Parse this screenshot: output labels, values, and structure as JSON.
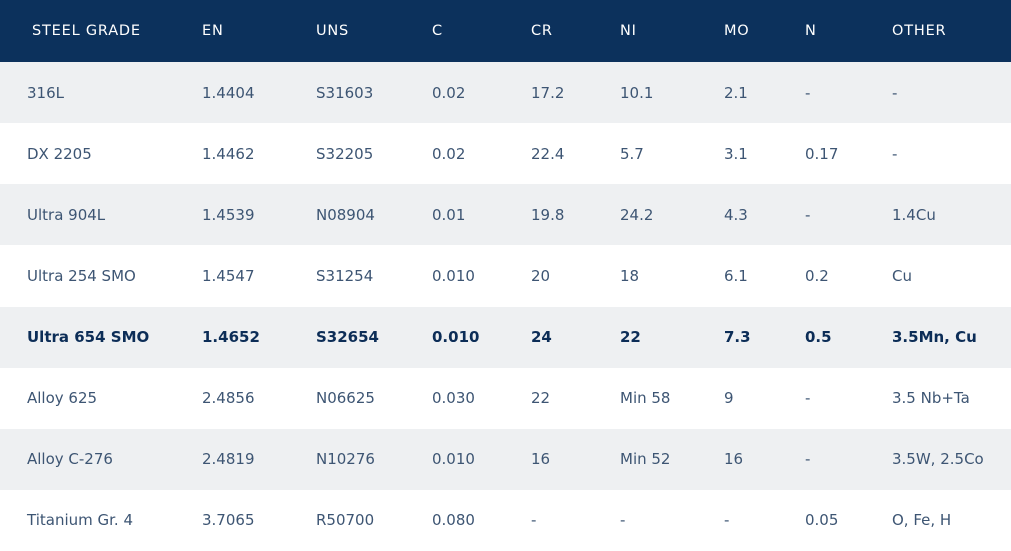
{
  "table": {
    "header": [
      "STEEL GRADE",
      "EN",
      "UNS",
      "C",
      "CR",
      "NI",
      "MO",
      "N",
      "OTHER"
    ],
    "rows": [
      [
        "316L",
        "1.4404",
        "S31603",
        "0.02",
        "17.2",
        "10.1",
        "2.1",
        "-",
        "-"
      ],
      [
        "DX 2205",
        "1.4462",
        "S32205",
        "0.02",
        "22.4",
        "5.7",
        "3.1",
        "0.17",
        "-"
      ],
      [
        "Ultra 904L",
        "1.4539",
        "N08904",
        "0.01",
        "19.8",
        "24.2",
        "4.3",
        "-",
        "1.4Cu"
      ],
      [
        "Ultra 254 SMO",
        "1.4547",
        "S31254",
        "0.010",
        "20",
        "18",
        "6.1",
        "0.2",
        "Cu"
      ],
      [
        "Ultra 654 SMO",
        "1.4652",
        "S32654",
        "0.010",
        "24",
        "22",
        "7.3",
        "0.5",
        "3.5Mn, Cu"
      ],
      [
        "Alloy 625",
        "2.4856",
        "N06625",
        "0.030",
        "22",
        "Min 58",
        "9",
        "-",
        "3.5 Nb+Ta"
      ],
      [
        "Alloy C-276",
        "2.4819",
        "N10276",
        "0.010",
        "16",
        "Min 52",
        "16",
        "-",
        "3.5W, 2.5Co"
      ],
      [
        "Titanium Gr. 4",
        "3.7065",
        "R50700",
        "0.080",
        "-",
        "-",
        "-",
        "0.05",
        "O, Fe, H"
      ]
    ]
  }
}
